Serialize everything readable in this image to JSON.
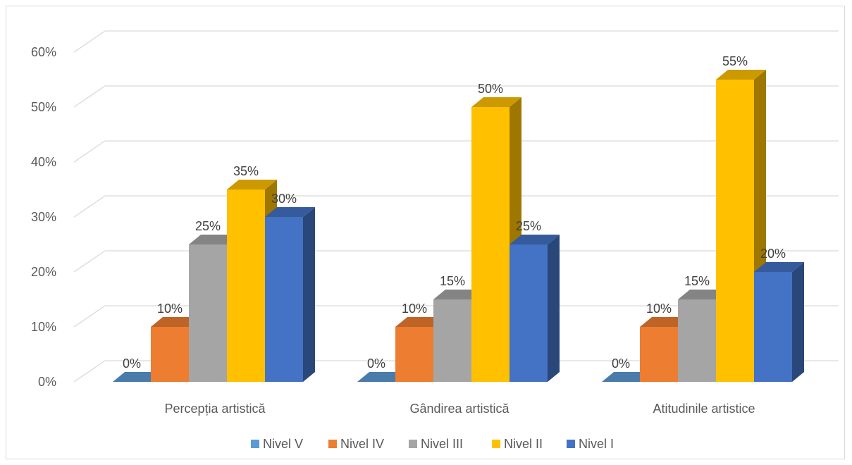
{
  "chart_data": {
    "type": "bar",
    "categories": [
      "Percepția artistică",
      "Gândirea artistică",
      "Atitudinile artistice"
    ],
    "series": [
      {
        "name": "Nivel V",
        "values": [
          0,
          0,
          0
        ],
        "color": "#5B9BD5"
      },
      {
        "name": "Nivel IV",
        "values": [
          10,
          10,
          10
        ],
        "color": "#ED7D31"
      },
      {
        "name": "Nivel III",
        "values": [
          25,
          15,
          15
        ],
        "color": "#A5A5A5"
      },
      {
        "name": "Nivel II",
        "values": [
          35,
          50,
          55
        ],
        "color": "#FFC000"
      },
      {
        "name": "Nivel I",
        "values": [
          30,
          25,
          20
        ],
        "color": "#4472C4"
      }
    ],
    "value_suffix": "%",
    "y_ticks": [
      "0%",
      "10%",
      "20%",
      "30%",
      "40%",
      "50%",
      "60%"
    ],
    "ylim": [
      0,
      60
    ],
    "grid": true,
    "legend": "bottom",
    "style": "3d-clustered-column"
  }
}
